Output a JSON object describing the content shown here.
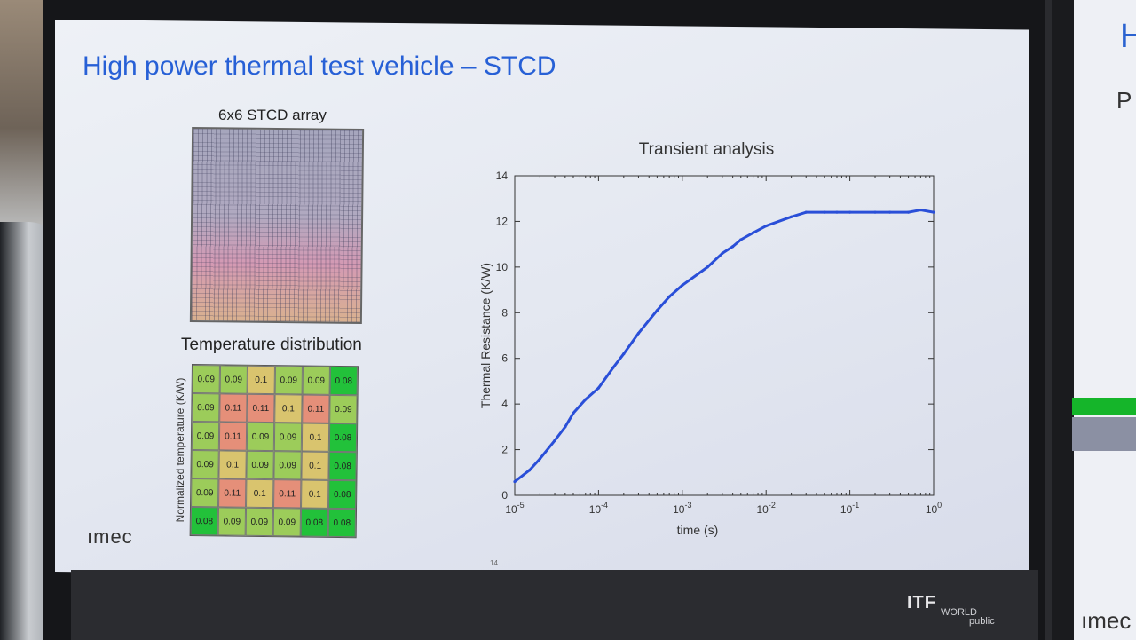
{
  "slide": {
    "title": "High power thermal test vehicle – STCD",
    "array_label": "6x6 STCD array",
    "distribution_label": "Temperature distribution",
    "grid_ylabel": "Normalized temperature (K/W)",
    "logo": "ımec",
    "page_number": "14"
  },
  "temperature_grid": [
    [
      "0.09",
      "0.09",
      "0.1",
      "0.09",
      "0.09",
      "0.08"
    ],
    [
      "0.09",
      "0.11",
      "0.11",
      "0.1",
      "0.11",
      "0.09"
    ],
    [
      "0.09",
      "0.11",
      "0.09",
      "0.09",
      "0.1",
      "0.08"
    ],
    [
      "0.09",
      "0.1",
      "0.09",
      "0.09",
      "0.1",
      "0.08"
    ],
    [
      "0.09",
      "0.11",
      "0.1",
      "0.11",
      "0.1",
      "0.08"
    ],
    [
      "0.08",
      "0.09",
      "0.09",
      "0.09",
      "0.08",
      "0.08"
    ]
  ],
  "colors": {
    "0.08": "#22c13a",
    "0.09": "#9ccc5a",
    "0.1": "#d9c46e",
    "0.11": "#e58f79"
  },
  "chart_data": {
    "type": "line",
    "title": "Transient analysis",
    "xlabel": "time (s)",
    "ylabel": "Thermal Resistance (K/W)",
    "xscale": "log",
    "xlim": [
      1e-05,
      1
    ],
    "ylim": [
      0,
      14
    ],
    "yticks": [
      "0",
      "2",
      "4",
      "6",
      "8",
      "10",
      "12",
      "14"
    ],
    "xticks": [
      {
        "base": "10",
        "exp": "-5"
      },
      {
        "base": "10",
        "exp": "-4"
      },
      {
        "base": "10",
        "exp": "-3"
      },
      {
        "base": "10",
        "exp": "-2"
      },
      {
        "base": "10",
        "exp": "-1"
      },
      {
        "base": "10",
        "exp": "0"
      }
    ],
    "series": [
      {
        "color": "#2a4fd8",
        "x": [
          1e-05,
          1.5e-05,
          2e-05,
          3e-05,
          4e-05,
          5e-05,
          7e-05,
          0.0001,
          0.00015,
          0.0002,
          0.0003,
          0.0005,
          0.0007,
          0.001,
          0.002,
          0.003,
          0.004,
          0.005,
          0.007,
          0.01,
          0.02,
          0.03,
          0.05,
          0.07,
          0.1,
          0.2,
          0.3,
          0.5,
          0.7,
          1.0
        ],
        "y": [
          0.6,
          1.1,
          1.6,
          2.4,
          3.0,
          3.6,
          4.2,
          4.7,
          5.6,
          6.2,
          7.1,
          8.1,
          8.7,
          9.2,
          10.0,
          10.6,
          10.9,
          11.2,
          11.5,
          11.8,
          12.2,
          12.4,
          12.4,
          12.4,
          12.4,
          12.4,
          12.4,
          12.4,
          12.5,
          12.4
        ]
      }
    ]
  },
  "environment": {
    "brand": "ITF",
    "brand_sub": "WORLD",
    "brand_sub2": "public",
    "right_title_char": "H",
    "right_sub_char": "P",
    "right_logo": "ımec"
  }
}
